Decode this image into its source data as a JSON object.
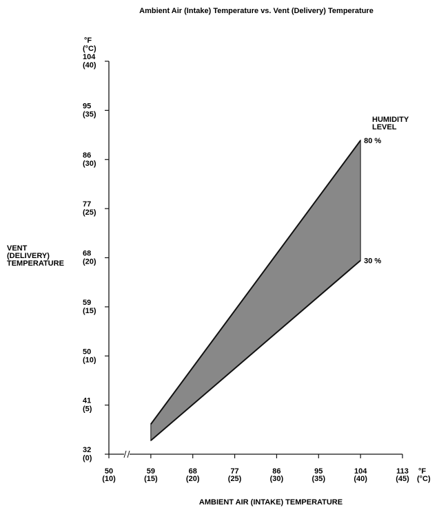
{
  "chart_data": {
    "type": "area",
    "title": "Ambient Air (Intake) Temperature vs. Vent (Delivery) Temperature",
    "xlabel": "AMBIENT AIR (INTAKE) TEMPERATURE",
    "ylabel": [
      "VENT",
      "(DELIVERY)",
      "TEMPERATURE"
    ],
    "x_unit": [
      "°F",
      "(°C)"
    ],
    "y_unit": [
      "°F",
      "(°C)"
    ],
    "xlim": [
      50,
      113
    ],
    "ylim": [
      32,
      104
    ],
    "x_ticks": [
      {
        "value": 50,
        "f": "50",
        "c": "(10)"
      },
      {
        "value": 59,
        "f": "59",
        "c": "(15)"
      },
      {
        "value": 68,
        "f": "68",
        "c": "(20)"
      },
      {
        "value": 77,
        "f": "77",
        "c": "(25)"
      },
      {
        "value": 86,
        "f": "86",
        "c": "(30)"
      },
      {
        "value": 95,
        "f": "95",
        "c": "(35)"
      },
      {
        "value": 104,
        "f": "104",
        "c": "(40)"
      },
      {
        "value": 113,
        "f": "113",
        "c": "(45)"
      }
    ],
    "y_ticks": [
      {
        "value": 32,
        "f": "32",
        "c": "(0)"
      },
      {
        "value": 41,
        "f": "41",
        "c": "(5)"
      },
      {
        "value": 50,
        "f": "50",
        "c": "(10)"
      },
      {
        "value": 59,
        "f": "59",
        "c": "(15)"
      },
      {
        "value": 68,
        "f": "68",
        "c": "(20)"
      },
      {
        "value": 77,
        "f": "77",
        "c": "(25)"
      },
      {
        "value": 86,
        "f": "86",
        "c": "(30)"
      },
      {
        "value": 95,
        "f": "95",
        "c": "(35)"
      },
      {
        "value": 104,
        "f": "104",
        "c": "(40)"
      }
    ],
    "x_axis_break": true,
    "legend_title": [
      "HUMIDITY",
      "LEVEL"
    ],
    "series": [
      {
        "name": "80 %",
        "x": [
          59,
          104
        ],
        "y": [
          37.5,
          89.5
        ]
      },
      {
        "name": "30 %",
        "x": [
          59,
          104
        ],
        "y": [
          34.5,
          67.5
        ]
      }
    ],
    "fill_color": "#888888",
    "line_color": "#111111",
    "grid": false
  }
}
